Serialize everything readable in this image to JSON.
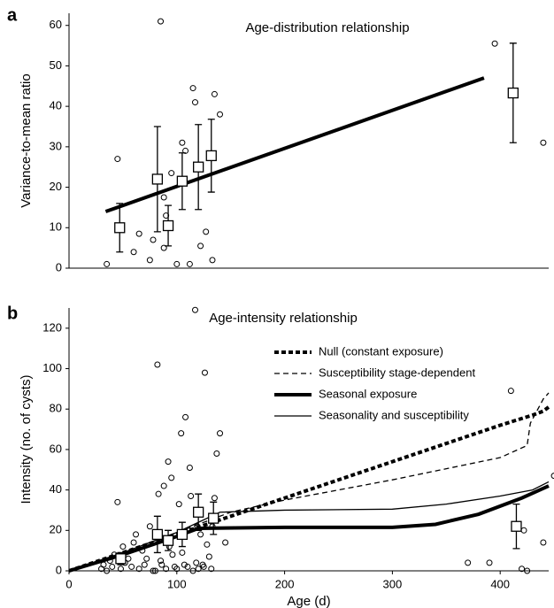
{
  "chart_data": [
    {
      "type": "scatter",
      "panel_label": "a",
      "title": "Age-distribution relationship",
      "y_label": "Variance-to-mean ratio",
      "xlim": [
        0,
        445
      ],
      "ylim": [
        0,
        63
      ],
      "yticks": [
        0,
        10,
        20,
        30,
        40,
        50,
        60
      ],
      "color": "#000000",
      "points": {
        "x": [
          35,
          45,
          60,
          65,
          75,
          78,
          85,
          88,
          88,
          90,
          95,
          100,
          105,
          108,
          112,
          115,
          117,
          122,
          127,
          132,
          133,
          135,
          140,
          395,
          440
        ],
        "y": [
          1,
          27,
          4,
          8.5,
          2,
          7,
          61,
          17.5,
          5,
          13,
          23.5,
          1,
          31,
          29,
          1,
          44.5,
          41,
          5.5,
          9,
          28,
          2,
          43,
          38,
          55.5,
          31
        ]
      },
      "means": {
        "x": [
          47,
          82,
          92,
          105,
          120,
          132,
          412
        ],
        "values": [
          10,
          22,
          10.5,
          21.5,
          25,
          27.8,
          43.3
        ],
        "errors": [
          6,
          13,
          5,
          7,
          10.5,
          9,
          12.3
        ]
      },
      "lines": [
        {
          "x": [
            34,
            385
          ],
          "values": [
            14,
            47
          ],
          "line_style": "solid",
          "line_weight": "thick"
        }
      ]
    },
    {
      "type": "scatter",
      "panel_label": "b",
      "title": "Age-intensity relationship",
      "x_label": "Age (d)",
      "y_label": "Intensity (no. of cysts)",
      "xlim": [
        0,
        445
      ],
      "ylim": [
        0,
        130
      ],
      "xticks": [
        0,
        100,
        200,
        300,
        400
      ],
      "yticks": [
        0,
        20,
        40,
        60,
        80,
        100,
        120
      ],
      "color": "#000000",
      "points": {
        "x": [
          30,
          32,
          35,
          38,
          40,
          42,
          45,
          48,
          50,
          52,
          55,
          58,
          60,
          62,
          65,
          68,
          70,
          72,
          75,
          78,
          80,
          82,
          83,
          85,
          86,
          88,
          90,
          92,
          93,
          95,
          96,
          98,
          100,
          102,
          104,
          105,
          107,
          108,
          110,
          112,
          113,
          115,
          117,
          118,
          119,
          120,
          122,
          124,
          125,
          126,
          128,
          130,
          132,
          133,
          135,
          137,
          140,
          145,
          370,
          390,
          410,
          420,
          422,
          425,
          440,
          450
        ],
        "y": [
          1,
          3,
          0,
          5,
          2,
          8,
          34,
          1,
          12,
          4,
          6,
          2,
          14,
          18,
          1,
          10,
          3,
          6,
          22,
          0,
          0,
          102,
          38,
          5,
          3,
          42,
          1,
          54,
          12,
          46,
          8,
          2,
          1,
          33,
          68,
          9,
          3,
          76,
          2,
          51,
          37,
          0,
          129,
          4,
          22,
          1,
          18,
          3,
          2,
          98,
          13,
          7,
          1,
          22,
          36,
          58,
          68,
          14,
          4,
          4,
          89,
          1,
          20,
          0,
          14,
          47
        ]
      },
      "means": {
        "x": [
          48,
          82,
          92,
          105,
          120,
          134,
          415
        ],
        "values": [
          6,
          18,
          15,
          18,
          29,
          26,
          22
        ],
        "errors": [
          3,
          9,
          5,
          6,
          9,
          8,
          11
        ]
      },
      "lines": [
        {
          "name": "Null (constant exposure)",
          "x": [
            0,
            100,
            200,
            300,
            400,
            430,
            440,
            445
          ],
          "values": [
            0,
            18,
            36,
            54,
            72,
            77,
            79,
            81
          ],
          "line_style": "dashed",
          "line_weight": "thick"
        },
        {
          "name": "Susceptibility stage-dependent",
          "x": [
            0,
            50,
            100,
            150,
            200,
            300,
            400,
            425,
            428,
            440,
            445
          ],
          "values": [
            0,
            9,
            19,
            29,
            35,
            45,
            56,
            62,
            73,
            85,
            88
          ],
          "line_style": "dashed",
          "line_weight": "thin"
        },
        {
          "name": "Seasonal exposure",
          "x": [
            0,
            50,
            100,
            120,
            200,
            300,
            340,
            380,
            420,
            445
          ],
          "values": [
            0,
            8,
            17,
            21,
            21.5,
            21.5,
            23,
            28,
            36,
            42
          ],
          "line_style": "solid",
          "line_weight": "thick"
        },
        {
          "name": "Seasonality and susceptibility",
          "x": [
            0,
            50,
            100,
            140,
            200,
            300,
            350,
            400,
            430,
            445
          ],
          "values": [
            0,
            9,
            19,
            29,
            30,
            30.5,
            33,
            37,
            40,
            44
          ],
          "line_style": "solid",
          "line_weight": "thin"
        }
      ]
    }
  ]
}
